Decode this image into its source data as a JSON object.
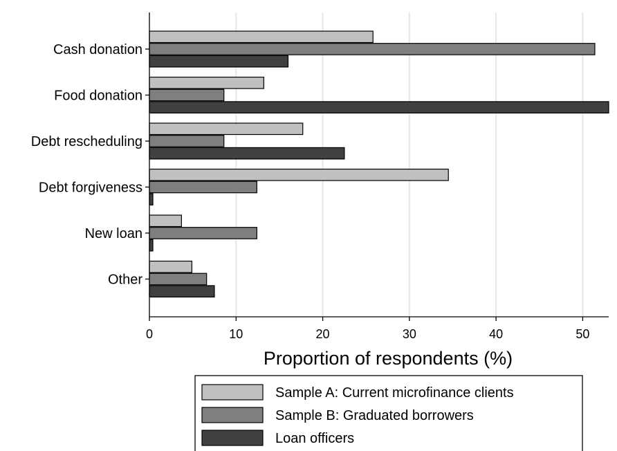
{
  "chart_data": {
    "type": "bar",
    "orientation": "horizontal",
    "categories": [
      "Cash donation",
      "Food donation",
      "Debt rescheduling",
      "Debt forgiveness",
      "New loan",
      "Other"
    ],
    "series": [
      {
        "name": "Sample A: Current microfinance clients",
        "color": "#c0c0c0",
        "values": [
          25.8,
          13.2,
          17.7,
          34.5,
          3.7,
          4.9
        ]
      },
      {
        "name": "Sample B: Graduated borrowers",
        "color": "#7f7f7f",
        "values": [
          51.4,
          8.6,
          8.6,
          12.4,
          12.4,
          6.6
        ]
      },
      {
        "name": "Loan officers",
        "color": "#404040",
        "values": [
          16.0,
          53.0,
          22.5,
          0.4,
          0.4,
          7.5
        ]
      }
    ],
    "xlabel": "Proportion of respondents (%)",
    "ylabel": "",
    "title": "",
    "xlim": [
      0,
      53
    ],
    "xticks": [
      0,
      10,
      20,
      30,
      40,
      50
    ],
    "grid": "vertical",
    "legend_position": "bottom"
  }
}
